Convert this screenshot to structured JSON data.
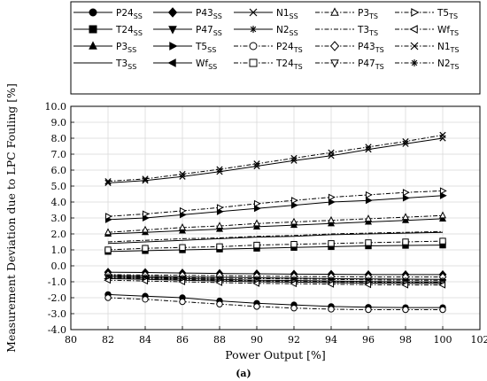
{
  "chart_data": {
    "type": "line",
    "xlabel": "Power Output [%]",
    "ylabel": "Measurement Deviation due to LPC Fouling [%]",
    "caption": "(a)",
    "xlim": [
      80,
      102
    ],
    "ylim": [
      -4.0,
      10.0
    ],
    "xticks": [
      "80",
      "82",
      "84",
      "86",
      "88",
      "90",
      "92",
      "94",
      "96",
      "98",
      "100",
      "102"
    ],
    "yticks": [
      "-4.0",
      "-3.0",
      "-2.0",
      "-1.0",
      "0.0",
      "1.0",
      "2.0",
      "3.0",
      "4.0",
      "5.0",
      "6.0",
      "7.0",
      "8.0",
      "9.0",
      "10.0"
    ],
    "grid": true,
    "legend_position": "top",
    "x": [
      82,
      84,
      86,
      88,
      90,
      92,
      94,
      96,
      98,
      100
    ],
    "series": [
      {
        "name": "P24",
        "sub": "SS",
        "marker": "circle",
        "fill": true,
        "dash": "solid",
        "values": [
          -1.8,
          -1.9,
          -2.0,
          -2.2,
          -2.35,
          -2.45,
          -2.55,
          -2.6,
          -2.62,
          -2.62
        ]
      },
      {
        "name": "T24",
        "sub": "SS",
        "marker": "square",
        "fill": true,
        "dash": "solid",
        "values": [
          0.9,
          0.95,
          1.0,
          1.05,
          1.1,
          1.15,
          1.2,
          1.25,
          1.28,
          1.3
        ]
      },
      {
        "name": "P3",
        "sub": "SS",
        "marker": "triangle-up",
        "fill": true,
        "dash": "solid",
        "values": [
          2.0,
          2.1,
          2.2,
          2.3,
          2.45,
          2.55,
          2.65,
          2.75,
          2.85,
          2.95
        ]
      },
      {
        "name": "T3",
        "sub": "SS",
        "marker": "none",
        "fill": true,
        "dash": "solid",
        "values": [
          1.4,
          1.5,
          1.6,
          1.7,
          1.8,
          1.85,
          1.95,
          2.0,
          2.05,
          2.1
        ]
      },
      {
        "name": "P43",
        "sub": "SS",
        "marker": "diamond",
        "fill": true,
        "dash": "solid",
        "values": [
          -0.4,
          -0.42,
          -0.45,
          -0.48,
          -0.5,
          -0.52,
          -0.53,
          -0.55,
          -0.55,
          -0.55
        ]
      },
      {
        "name": "P47",
        "sub": "SS",
        "marker": "triangle-down",
        "fill": true,
        "dash": "solid",
        "values": [
          -0.7,
          -0.75,
          -0.8,
          -0.85,
          -0.9,
          -0.92,
          -0.95,
          -0.98,
          -1.0,
          -1.0
        ]
      },
      {
        "name": "T5",
        "sub": "SS",
        "marker": "triangle-right",
        "fill": true,
        "dash": "solid",
        "values": [
          2.9,
          3.0,
          3.2,
          3.4,
          3.6,
          3.8,
          4.0,
          4.1,
          4.25,
          4.4
        ]
      },
      {
        "name": "Wf",
        "sub": "SS",
        "marker": "triangle-left",
        "fill": true,
        "dash": "solid",
        "values": [
          -0.8,
          -0.85,
          -0.9,
          -0.95,
          -1.0,
          -1.02,
          -1.05,
          -1.08,
          -1.1,
          -1.1
        ]
      },
      {
        "name": "N1",
        "sub": "SS",
        "marker": "x",
        "fill": true,
        "dash": "solid",
        "values": [
          5.2,
          5.35,
          5.6,
          5.9,
          6.25,
          6.6,
          6.9,
          7.3,
          7.65,
          8.0
        ]
      },
      {
        "name": "N2",
        "sub": "SS",
        "marker": "star",
        "fill": true,
        "dash": "solid",
        "values": [
          -0.6,
          -0.65,
          -0.7,
          -0.72,
          -0.75,
          -0.78,
          -0.8,
          -0.82,
          -0.83,
          -0.85
        ]
      },
      {
        "name": "P24",
        "sub": "TS",
        "marker": "circle",
        "fill": false,
        "dash": "dashdot",
        "values": [
          -2.0,
          -2.1,
          -2.25,
          -2.4,
          -2.55,
          -2.65,
          -2.72,
          -2.75,
          -2.75,
          -2.75
        ]
      },
      {
        "name": "T24",
        "sub": "TS",
        "marker": "square",
        "fill": false,
        "dash": "dashdot",
        "values": [
          1.0,
          1.1,
          1.15,
          1.2,
          1.3,
          1.35,
          1.4,
          1.45,
          1.5,
          1.55
        ]
      },
      {
        "name": "P3",
        "sub": "TS",
        "marker": "triangle-up",
        "fill": false,
        "dash": "dashdot",
        "values": [
          2.1,
          2.25,
          2.4,
          2.5,
          2.65,
          2.75,
          2.85,
          2.95,
          3.05,
          3.15
        ]
      },
      {
        "name": "T3",
        "sub": "TS",
        "marker": "none",
        "fill": false,
        "dash": "dashdot",
        "values": [
          1.5,
          1.6,
          1.7,
          1.75,
          1.85,
          1.9,
          2.0,
          2.05,
          2.1,
          2.15
        ]
      },
      {
        "name": "P43",
        "sub": "TS",
        "marker": "diamond",
        "fill": false,
        "dash": "dashdot",
        "values": [
          -0.55,
          -0.58,
          -0.6,
          -0.62,
          -0.65,
          -0.67,
          -0.68,
          -0.7,
          -0.7,
          -0.7
        ]
      },
      {
        "name": "P47",
        "sub": "TS",
        "marker": "triangle-down",
        "fill": false,
        "dash": "dashdot",
        "values": [
          -0.75,
          -0.8,
          -0.85,
          -0.9,
          -0.95,
          -0.98,
          -1.0,
          -1.02,
          -1.05,
          -1.05
        ]
      },
      {
        "name": "T5",
        "sub": "TS",
        "marker": "triangle-right",
        "fill": false,
        "dash": "dashdot",
        "values": [
          3.1,
          3.25,
          3.45,
          3.65,
          3.9,
          4.1,
          4.3,
          4.45,
          4.6,
          4.7
        ]
      },
      {
        "name": "Wf",
        "sub": "TS",
        "marker": "triangle-left",
        "fill": false,
        "dash": "dashdot",
        "values": [
          -0.9,
          -0.95,
          -1.0,
          -1.05,
          -1.1,
          -1.12,
          -1.15,
          -1.18,
          -1.2,
          -1.2
        ]
      },
      {
        "name": "N1",
        "sub": "TS",
        "marker": "x",
        "fill": false,
        "dash": "dashdot",
        "values": [
          5.3,
          5.45,
          5.75,
          6.05,
          6.4,
          6.75,
          7.1,
          7.45,
          7.8,
          8.2
        ]
      },
      {
        "name": "N2",
        "sub": "TS",
        "marker": "star",
        "fill": false,
        "dash": "dashdot",
        "values": [
          -0.65,
          -0.7,
          -0.75,
          -0.78,
          -0.8,
          -0.82,
          -0.85,
          -0.88,
          -0.9,
          -0.9
        ]
      }
    ]
  }
}
